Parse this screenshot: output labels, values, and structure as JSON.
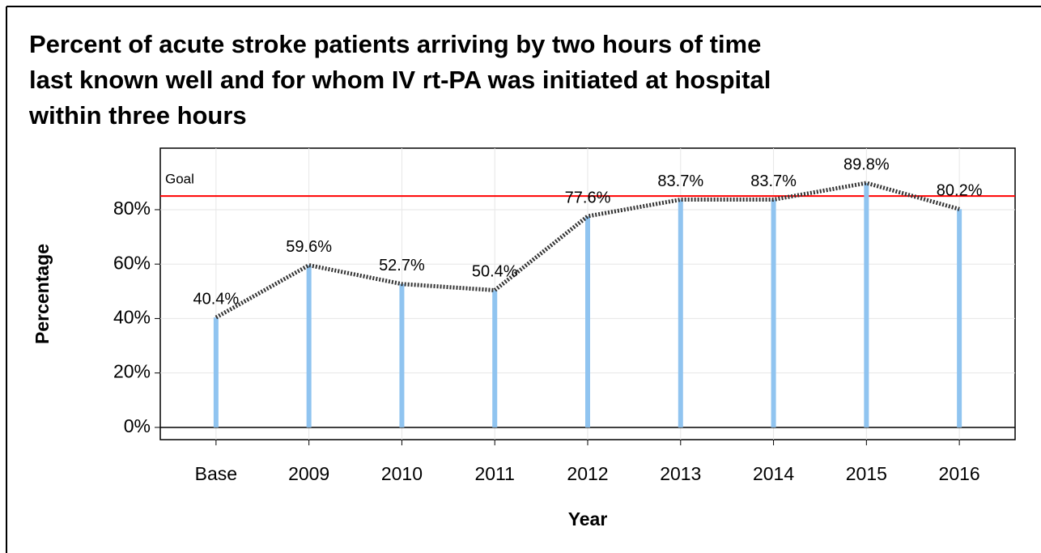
{
  "chart_data": {
    "type": "line",
    "title": [
      "Percent of acute stroke patients arriving by two hours of time",
      "last known well and for whom IV rt-PA was initiated at hospital",
      "within three hours"
    ],
    "x_label": "Year",
    "y_label": "Percentage",
    "categories": [
      "Base",
      "2009",
      "2010",
      "2011",
      "2012",
      "2013",
      "2014",
      "2015",
      "2016"
    ],
    "values": [
      40.4,
      59.6,
      52.7,
      50.4,
      77.6,
      83.7,
      83.7,
      89.8,
      80.2
    ],
    "value_labels": [
      "40.4%",
      "59.6%",
      "52.7%",
      "50.4%",
      "77.6%",
      "83.7%",
      "83.7%",
      "89.8%",
      "80.2%"
    ],
    "color": "#90c4f0",
    "line_color": "#333333",
    "goal": {
      "label": "Goal",
      "value": 85,
      "color": "#ff0000"
    },
    "ylim": [
      -4.5,
      102.6
    ],
    "yticks": [
      {
        "value": 0,
        "label": "0%"
      },
      {
        "value": 20,
        "label": "20%"
      },
      {
        "value": 40,
        "label": "40%"
      },
      {
        "value": 60,
        "label": "60%"
      },
      {
        "value": 80,
        "label": "80%"
      }
    ],
    "grid": true
  }
}
